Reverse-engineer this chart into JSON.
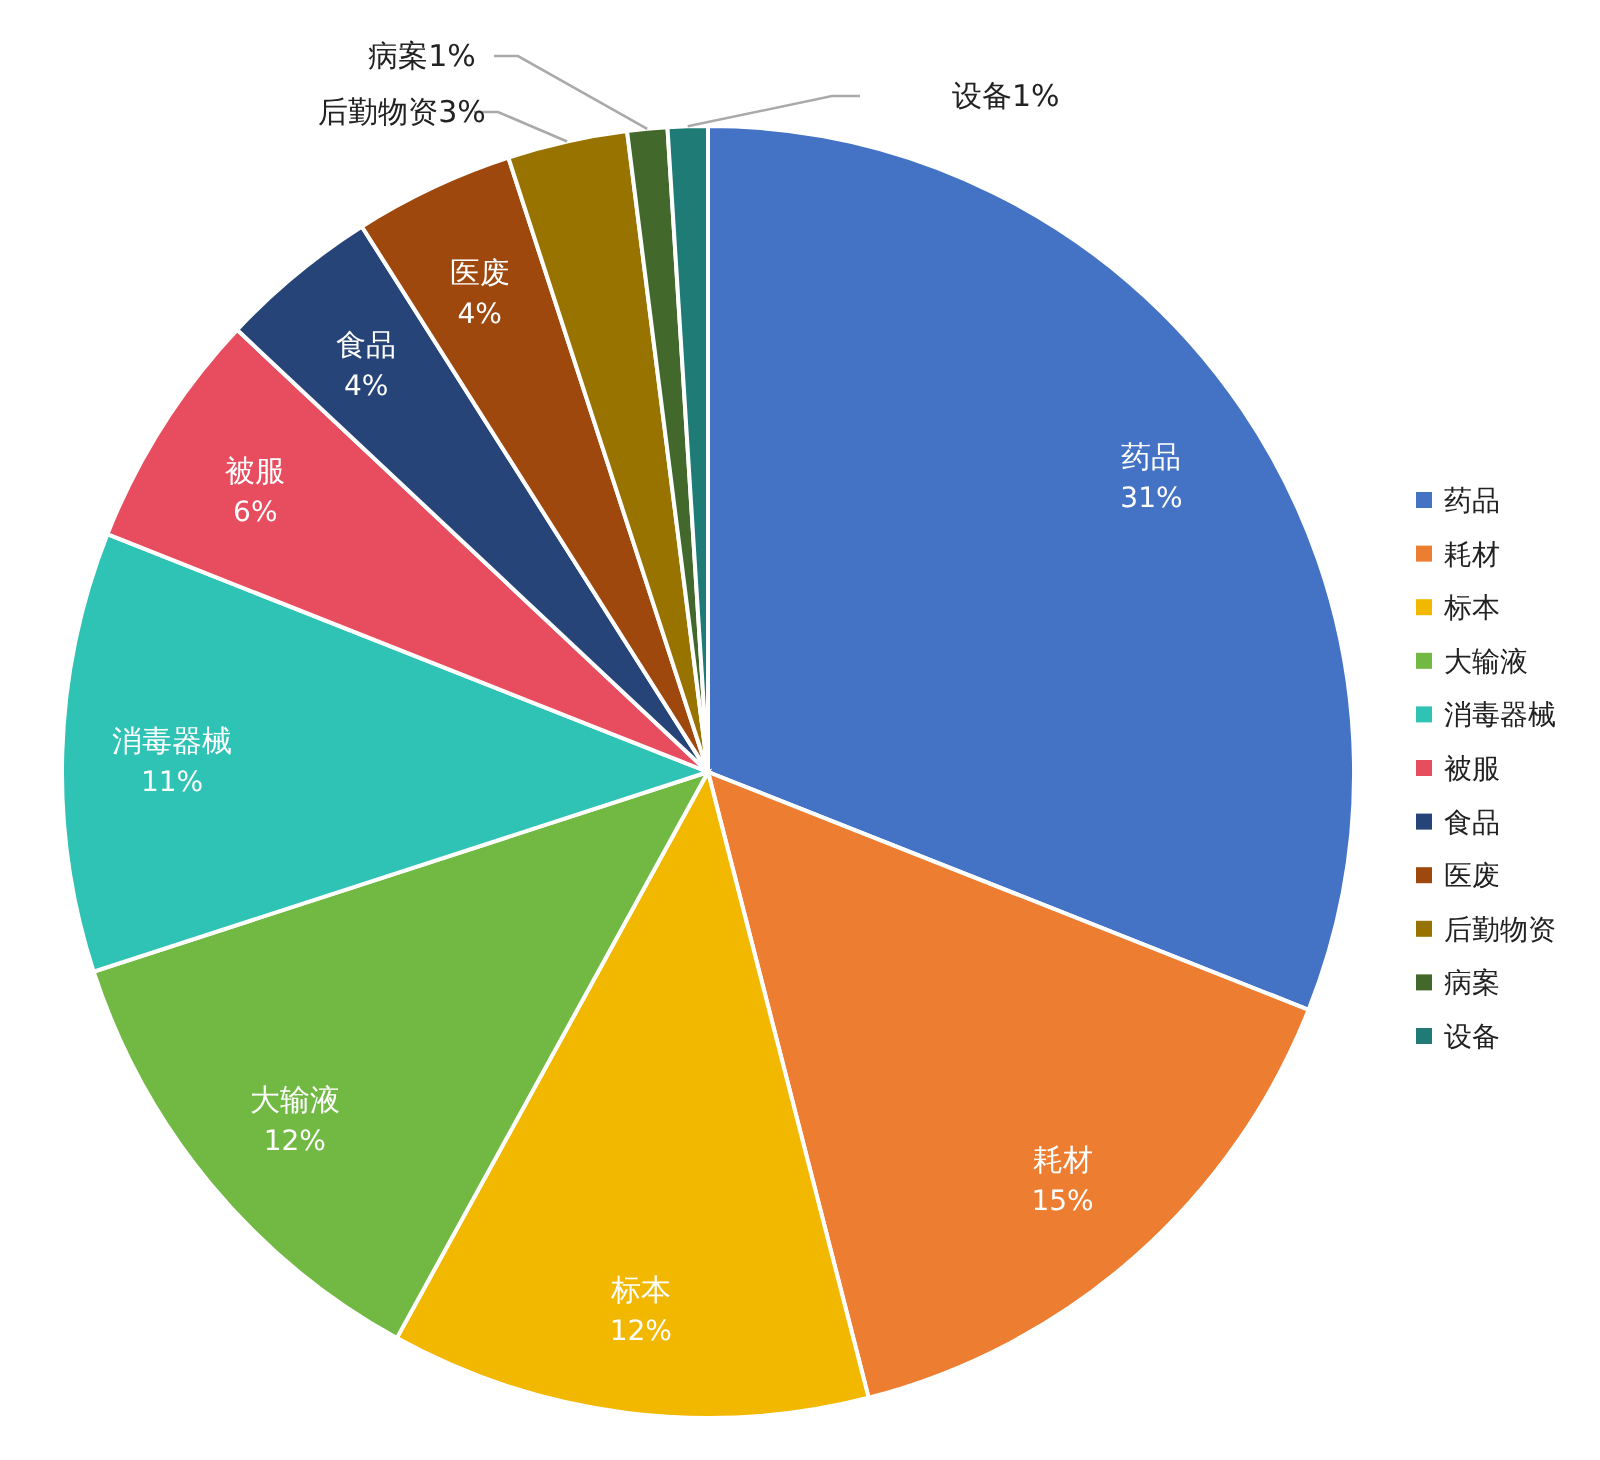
{
  "chart_data": {
    "type": "pie",
    "categories": [
      "药品",
      "耗材",
      "标本",
      "大输液",
      "消毒器械",
      "被服",
      "食品",
      "医废",
      "后勤物资",
      "病案",
      "设备"
    ],
    "values": [
      31,
      15,
      12,
      12,
      11,
      6,
      4,
      4,
      3,
      1,
      1
    ],
    "colors": [
      "#4472c4",
      "#ed7d31",
      "#f2b800",
      "#72b944",
      "#2ec3b5",
      "#e84c5f",
      "#264478",
      "#9e480e",
      "#997300",
      "#43682b",
      "#1e7b75"
    ],
    "value_labels": [
      "31%",
      "15%",
      "12%",
      "12%",
      "11%",
      "6%",
      "4%",
      "4%",
      "3%",
      "1%",
      "1%"
    ],
    "legend": "right"
  }
}
